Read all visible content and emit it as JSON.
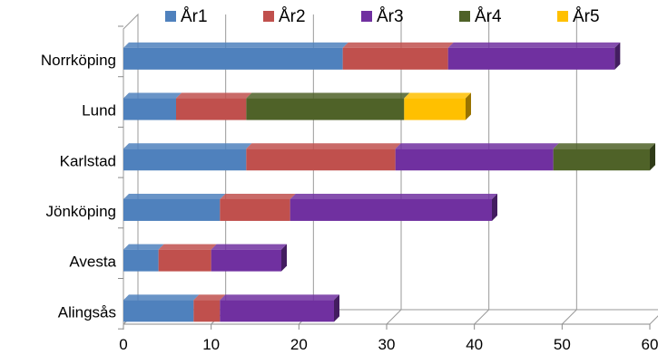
{
  "chart_data": {
    "type": "bar",
    "orientation": "horizontal",
    "stacked": true,
    "style": "3d",
    "categories": [
      "Norrköping",
      "Lund",
      "Karlstad",
      "Jönköping",
      "Avesta",
      "Alingsås"
    ],
    "series": [
      {
        "name": "År1",
        "color": "#4F81BD",
        "values": [
          25,
          6,
          14,
          11,
          4,
          8
        ]
      },
      {
        "name": "År2",
        "color": "#C0504D",
        "values": [
          12,
          8,
          17,
          8,
          6,
          3
        ]
      },
      {
        "name": "År3",
        "color": "#7030A0",
        "values": [
          19,
          0,
          18,
          23,
          8,
          13
        ]
      },
      {
        "name": "År4",
        "color": "#4F6228",
        "values": [
          0,
          18,
          11,
          0,
          0,
          0
        ]
      },
      {
        "name": "År5",
        "color": "#FFC000",
        "values": [
          0,
          7,
          0,
          0,
          0,
          0
        ]
      }
    ],
    "xlim": [
      0,
      60
    ],
    "xticks": [
      "0",
      "10",
      "20",
      "30",
      "40",
      "50",
      "60"
    ],
    "grid": true,
    "legend_position": "top"
  }
}
